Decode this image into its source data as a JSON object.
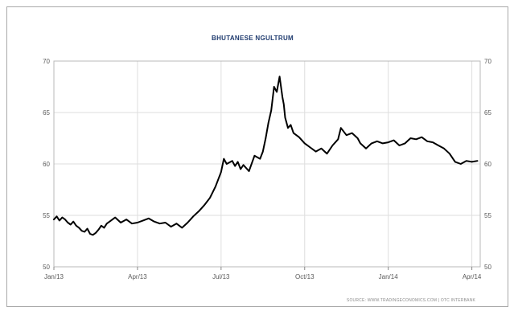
{
  "chart_data": {
    "type": "line",
    "title": "BHUTANESE NGULTRUM",
    "xlabel": "",
    "ylabel": "",
    "ylim": [
      50,
      70
    ],
    "yticks": [
      50,
      55,
      60,
      65,
      70
    ],
    "xtick_labels": [
      "Jan/13",
      "Apr/13",
      "Jul/13",
      "Oct/13",
      "Jan/14",
      "Apr/14"
    ],
    "xtick_positions": [
      0,
      3,
      6,
      9,
      12,
      15
    ],
    "xlim": [
      0,
      15.3
    ],
    "grid": true,
    "source": "SOURCE: WWW.TRADINGECONOMICS.COM | OTC INTERBANK",
    "series": [
      {
        "color": "#000000",
        "x": [
          0.0,
          0.1,
          0.2,
          0.3,
          0.4,
          0.5,
          0.6,
          0.7,
          0.8,
          0.9,
          1.0,
          1.1,
          1.2,
          1.3,
          1.4,
          1.5,
          1.6,
          1.7,
          1.8,
          1.9,
          2.0,
          2.2,
          2.4,
          2.6,
          2.8,
          3.0,
          3.2,
          3.4,
          3.6,
          3.8,
          4.0,
          4.2,
          4.4,
          4.6,
          4.8,
          5.0,
          5.2,
          5.4,
          5.6,
          5.8,
          6.0,
          6.1,
          6.2,
          6.4,
          6.5,
          6.6,
          6.7,
          6.8,
          7.0,
          7.2,
          7.4,
          7.5,
          7.6,
          7.7,
          7.8,
          7.9,
          8.0,
          8.1,
          8.2,
          8.25,
          8.3,
          8.4,
          8.5,
          8.6,
          8.8,
          9.0,
          9.2,
          9.4,
          9.6,
          9.8,
          10.0,
          10.2,
          10.3,
          10.5,
          10.7,
          10.9,
          11.0,
          11.2,
          11.4,
          11.6,
          11.8,
          12.0,
          12.2,
          12.4,
          12.6,
          12.8,
          13.0,
          13.2,
          13.4,
          13.6,
          13.8,
          14.0,
          14.2,
          14.4,
          14.6,
          14.8,
          15.0,
          15.2
        ],
        "y": [
          54.6,
          54.9,
          54.5,
          54.8,
          54.6,
          54.3,
          54.1,
          54.4,
          54.0,
          53.8,
          53.5,
          53.4,
          53.7,
          53.2,
          53.1,
          53.3,
          53.6,
          54.0,
          53.8,
          54.2,
          54.4,
          54.8,
          54.3,
          54.6,
          54.2,
          54.3,
          54.5,
          54.7,
          54.4,
          54.2,
          54.3,
          53.9,
          54.2,
          53.8,
          54.3,
          54.9,
          55.4,
          56.0,
          56.7,
          57.8,
          59.2,
          60.5,
          60.0,
          60.3,
          59.8,
          60.2,
          59.5,
          59.9,
          59.3,
          60.8,
          60.5,
          61.2,
          62.5,
          64.0,
          65.2,
          67.5,
          67.0,
          68.5,
          66.5,
          65.8,
          64.5,
          63.5,
          63.8,
          63.0,
          62.6,
          62.0,
          61.6,
          61.2,
          61.5,
          61.0,
          61.8,
          62.4,
          63.5,
          62.8,
          63.0,
          62.5,
          62.0,
          61.5,
          62.0,
          62.2,
          62.0,
          62.1,
          62.3,
          61.8,
          62.0,
          62.5,
          62.4,
          62.6,
          62.2,
          62.1,
          61.8,
          61.5,
          61.0,
          60.2,
          60.0,
          60.3,
          60.2,
          60.3
        ]
      }
    ]
  }
}
